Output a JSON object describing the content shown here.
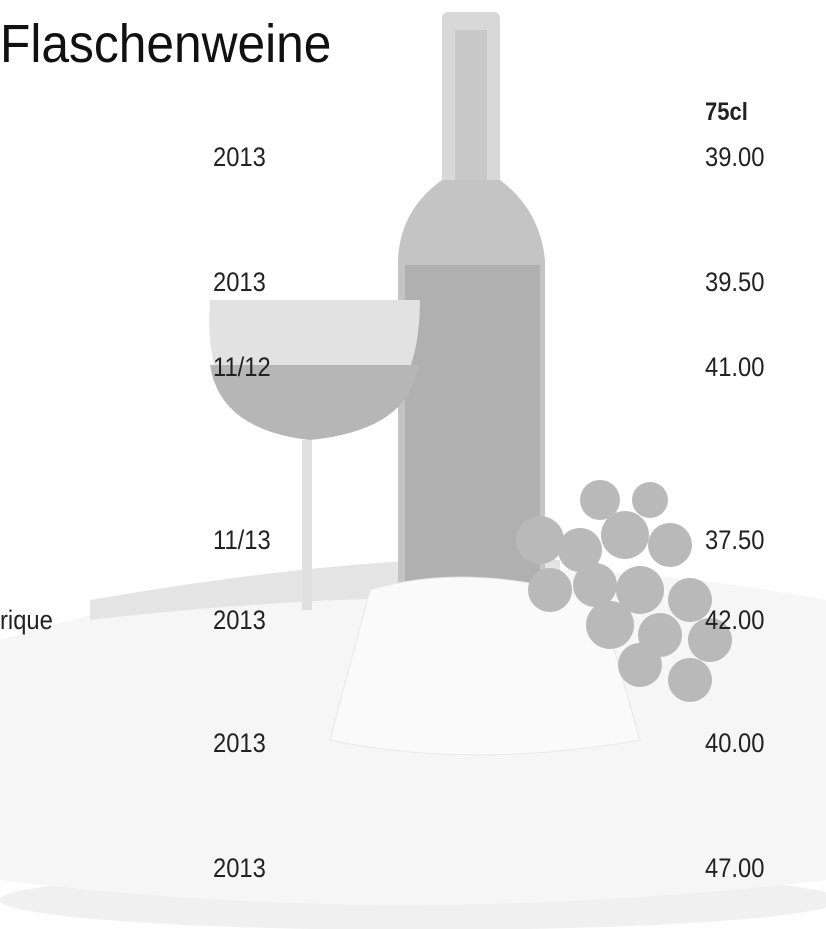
{
  "header": {
    "title": "Flaschenweine",
    "size": "75cl"
  },
  "rows": [
    {
      "year": "2013",
      "price": "39.00"
    },
    {
      "year": "2013",
      "price": "39.50"
    },
    {
      "year": "11/12",
      "price": "41.00"
    },
    {
      "year": "11/13",
      "price": "37.50"
    },
    {
      "name": "rique",
      "year": "2013",
      "price": "42.00"
    },
    {
      "year": "2013",
      "price": "40.00"
    },
    {
      "year": "2013",
      "price": "47.00"
    }
  ]
}
